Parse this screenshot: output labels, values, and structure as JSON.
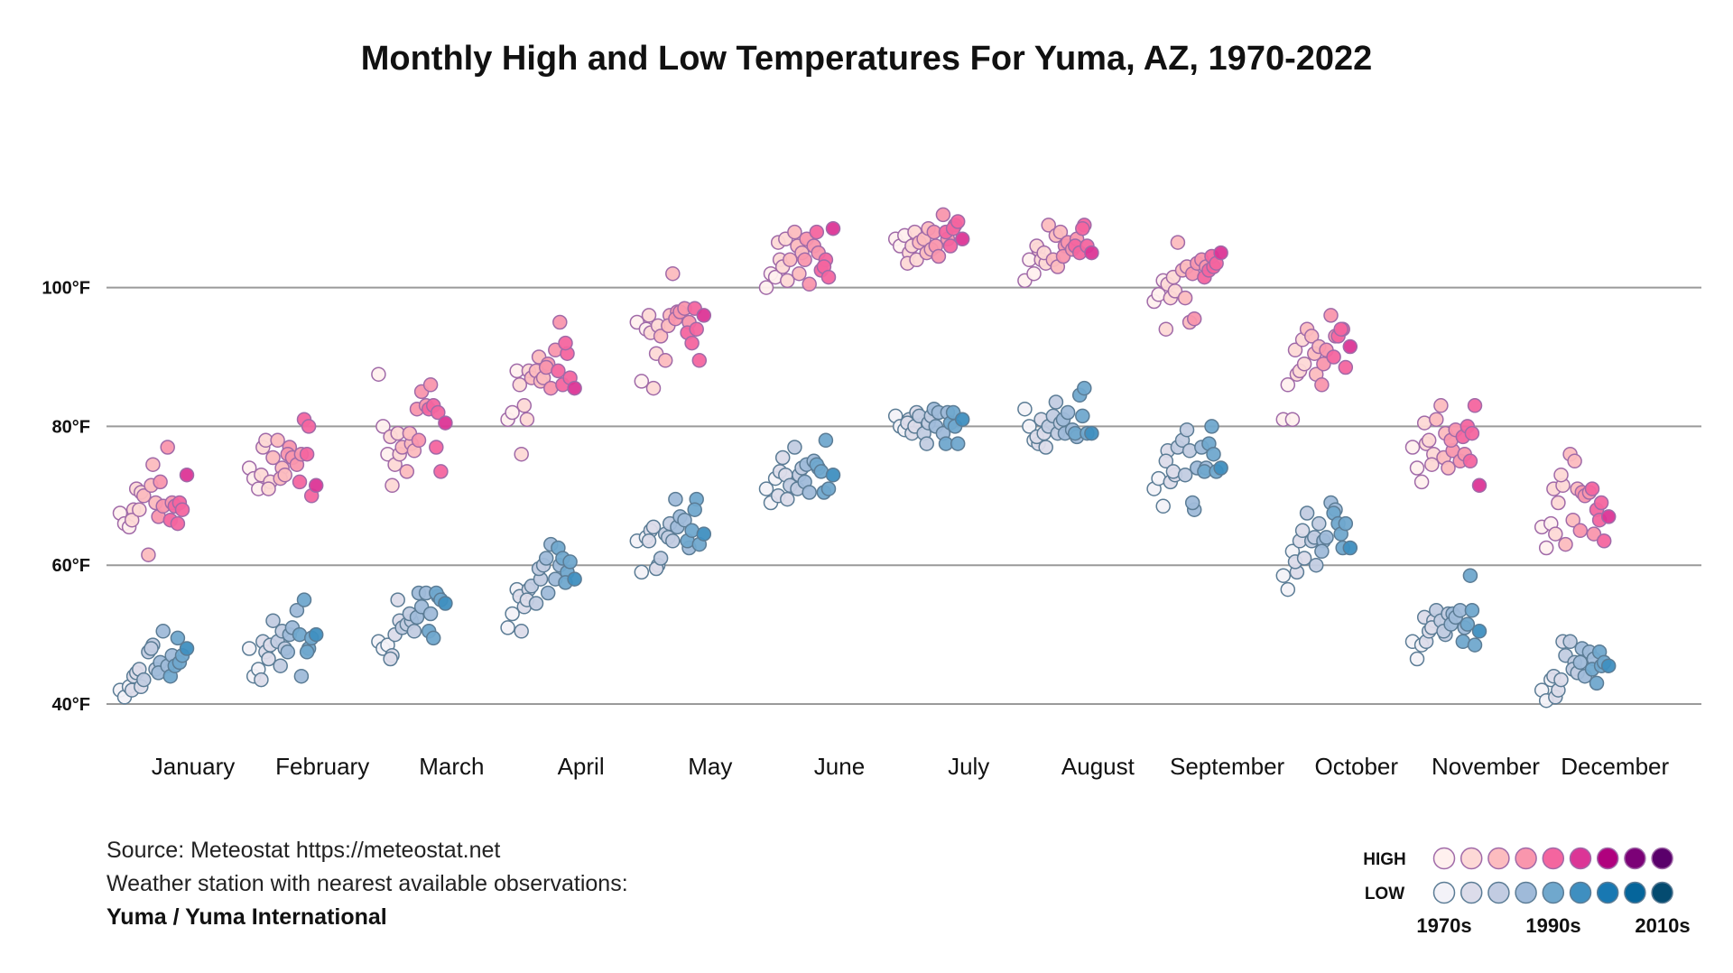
{
  "chart_data": {
    "type": "scatter",
    "title": "Monthly High and Low Temperatures For Yuma, AZ, 1970-2022",
    "ylim": [
      40,
      110
    ],
    "y_ticks": [
      {
        "value": 40,
        "label": "40°F"
      },
      {
        "value": 60,
        "label": "60°F"
      },
      {
        "value": 80,
        "label": "80°F"
      },
      {
        "value": 100,
        "label": "100°F"
      }
    ],
    "grid": true,
    "legend_placement": "bottom-right",
    "categories": [
      "January",
      "February",
      "March",
      "April",
      "May",
      "June",
      "July",
      "August",
      "September",
      "October",
      "November",
      "December"
    ],
    "note": "values per month listed in chronological order (left = earliest year, right = latest)",
    "series": [
      {
        "name": "HIGH",
        "values": [
          [
            67.5,
            66,
            65.5,
            68,
            66.5,
            71,
            70.5,
            68,
            70,
            61.5,
            74.5,
            71.5,
            69,
            72,
            67,
            68.5,
            77,
            69,
            66.5,
            68.5,
            69,
            66,
            68,
            73
          ],
          [
            74,
            72.5,
            71,
            77,
            73,
            78,
            72,
            71,
            75.5,
            78,
            74,
            72.5,
            73,
            77,
            76,
            75.5,
            74.5,
            76,
            72,
            81,
            80,
            76,
            70,
            71.5
          ],
          [
            87.5,
            80,
            76,
            71.5,
            78.5,
            74.5,
            76,
            79,
            77,
            73.5,
            77.5,
            79,
            76.5,
            78,
            82.5,
            85,
            83,
            86,
            82.5,
            83,
            82,
            77,
            73.5,
            80.5
          ],
          [
            81,
            82,
            88,
            76,
            86,
            83,
            88,
            81,
            87,
            88,
            86.5,
            90,
            87,
            89,
            88.5,
            85.5,
            91,
            95,
            88,
            86,
            90.5,
            92,
            87,
            85.5
          ],
          [
            95,
            86.5,
            94,
            93.5,
            96,
            85.5,
            94.5,
            90.5,
            93,
            89.5,
            96,
            94.5,
            102,
            96.5,
            95.5,
            96.5,
            97,
            95,
            93.5,
            92,
            94,
            97,
            89.5,
            96
          ],
          [
            100,
            102,
            101.5,
            104,
            106.5,
            103,
            101,
            107,
            104,
            108,
            102,
            106,
            105,
            107,
            104,
            100.5,
            106,
            105,
            108,
            102.5,
            104,
            103,
            101.5,
            108.5
          ],
          [
            107,
            106,
            107.5,
            105,
            103.5,
            106,
            104,
            108,
            106.5,
            107,
            108.5,
            105,
            105.5,
            106,
            108,
            104.5,
            110.5,
            107,
            108,
            106,
            109,
            108.5,
            109.5,
            107
          ],
          [
            101,
            104,
            102,
            105.5,
            106,
            104,
            103.5,
            105,
            109,
            104,
            103,
            107.5,
            108,
            106,
            104.5,
            106.5,
            105.5,
            107,
            106,
            105,
            109,
            108.5,
            106,
            105
          ],
          [
            98,
            99,
            101,
            100.5,
            94,
            98.5,
            99.5,
            101.5,
            106.5,
            102.5,
            103,
            98.5,
            95,
            95.5,
            102,
            103.5,
            104,
            103,
            101.5,
            102.5,
            103,
            104.5,
            103.5,
            105
          ],
          [
            81,
            86,
            81,
            87.5,
            91,
            88,
            89,
            92.5,
            94,
            93,
            87.5,
            90.5,
            91.5,
            89,
            86,
            91,
            96,
            93,
            90,
            93,
            94,
            94,
            88.5,
            91.5
          ],
          [
            77,
            74,
            72,
            77.5,
            80.5,
            78,
            76,
            74.5,
            81,
            83,
            79,
            75.5,
            74,
            76.5,
            78,
            79.5,
            75,
            76,
            78.5,
            80,
            79,
            75,
            83,
            71.5
          ],
          [
            65.5,
            62.5,
            66,
            64.5,
            71,
            69,
            71.5,
            73,
            63,
            76,
            75,
            66.5,
            71,
            70.5,
            65,
            70,
            70.5,
            64.5,
            71,
            68,
            69,
            66.5,
            63.5,
            67
          ]
        ]
      },
      {
        "name": "LOW",
        "values": [
          [
            42,
            41,
            42.5,
            44,
            42,
            44.5,
            42.5,
            45,
            43.5,
            47.5,
            48.5,
            48,
            45,
            46,
            44.5,
            50.5,
            45.5,
            47,
            44,
            45.5,
            46,
            49.5,
            47,
            48
          ],
          [
            48,
            44,
            45,
            49,
            43.5,
            47.5,
            48.5,
            46.5,
            52,
            49,
            50.5,
            45.5,
            48,
            50,
            47.5,
            51,
            53.5,
            44,
            50,
            55,
            48,
            47.5,
            49.5,
            50
          ],
          [
            49,
            48,
            48.5,
            47,
            46.5,
            50,
            52,
            55,
            51,
            51.5,
            52,
            53,
            50.5,
            56,
            52.5,
            54,
            56,
            53,
            50.5,
            49.5,
            55.5,
            56,
            55,
            54.5
          ],
          [
            51,
            53,
            56.5,
            50.5,
            55.5,
            54,
            56.5,
            55,
            57,
            54.5,
            58,
            59.5,
            60,
            56,
            61,
            63,
            58,
            60,
            62.5,
            61,
            59,
            57.5,
            60.5,
            58
          ],
          [
            63.5,
            59,
            64,
            65,
            63.5,
            65.5,
            60,
            59.5,
            61,
            64.5,
            66,
            64,
            63.5,
            65.5,
            69.5,
            67,
            66.5,
            62.5,
            63.5,
            65,
            69.5,
            68,
            63,
            64.5
          ],
          [
            71,
            69,
            72.5,
            73.5,
            70,
            75.5,
            69.5,
            73,
            71.5,
            77,
            73,
            71,
            74,
            74.5,
            72,
            70.5,
            75,
            74,
            74.5,
            73.5,
            78,
            70.5,
            71,
            73
          ],
          [
            81.5,
            80,
            79.5,
            81,
            80.5,
            79,
            82,
            80,
            81.5,
            79,
            80.5,
            77.5,
            81.5,
            80,
            82.5,
            82,
            79,
            82,
            77.5,
            80.5,
            80,
            82,
            77.5,
            81
          ],
          [
            82.5,
            80,
            78,
            77.5,
            78.5,
            81,
            77,
            79,
            80,
            81.5,
            79,
            83.5,
            80.5,
            79,
            81,
            82,
            79.5,
            78.5,
            79,
            84.5,
            85.5,
            81.5,
            79,
            79
          ],
          [
            71,
            72.5,
            68.5,
            76.5,
            75,
            72,
            73,
            73.5,
            77,
            78,
            79.5,
            73,
            76.5,
            68,
            69,
            74,
            77,
            74,
            73.5,
            77.5,
            76,
            80,
            73.5,
            74
          ],
          [
            58.5,
            56.5,
            62,
            59,
            60.5,
            63.5,
            61,
            65,
            67.5,
            63.5,
            60,
            64,
            66,
            63.5,
            62,
            64,
            69,
            68,
            67.5,
            66,
            62.5,
            64.5,
            66,
            62.5
          ],
          [
            49,
            46.5,
            48.5,
            49,
            52.5,
            50.5,
            52,
            51,
            53.5,
            52,
            50,
            50.5,
            53,
            53,
            51.5,
            52.5,
            53.5,
            51,
            49,
            51.5,
            53.5,
            58.5,
            48.5,
            50.5
          ],
          [
            42,
            40.5,
            43.5,
            41,
            44,
            42,
            49,
            43.5,
            47,
            49,
            46,
            45,
            44.5,
            48,
            46,
            44,
            47.5,
            46.5,
            45,
            43,
            45.5,
            47.5,
            46,
            45.5
          ]
        ]
      }
    ]
  },
  "legend": {
    "high_label": "HIGH",
    "low_label": "LOW",
    "decades": [
      "1970s",
      "1990s",
      "2010s"
    ],
    "high_colors": [
      "#fff0ee",
      "#fdd9d6",
      "#fcbcbf",
      "#f996ad",
      "#f4659f",
      "#dc3596",
      "#b0017e",
      "#7c0177",
      "#5a006b"
    ],
    "low_colors": [
      "#f3f2f8",
      "#dcdcea",
      "#c2cce2",
      "#9fbad9",
      "#70a8cd",
      "#3f8fc0",
      "#1878b2",
      "#05659b",
      "#044b70"
    ],
    "high_stroke": "#a06aa8",
    "low_stroke": "#5b7c95"
  },
  "footer": {
    "source": "Source: Meteostat https://meteostat.net",
    "station_note": "Weather station with nearest available observations:",
    "station": "Yuma / Yuma International"
  }
}
